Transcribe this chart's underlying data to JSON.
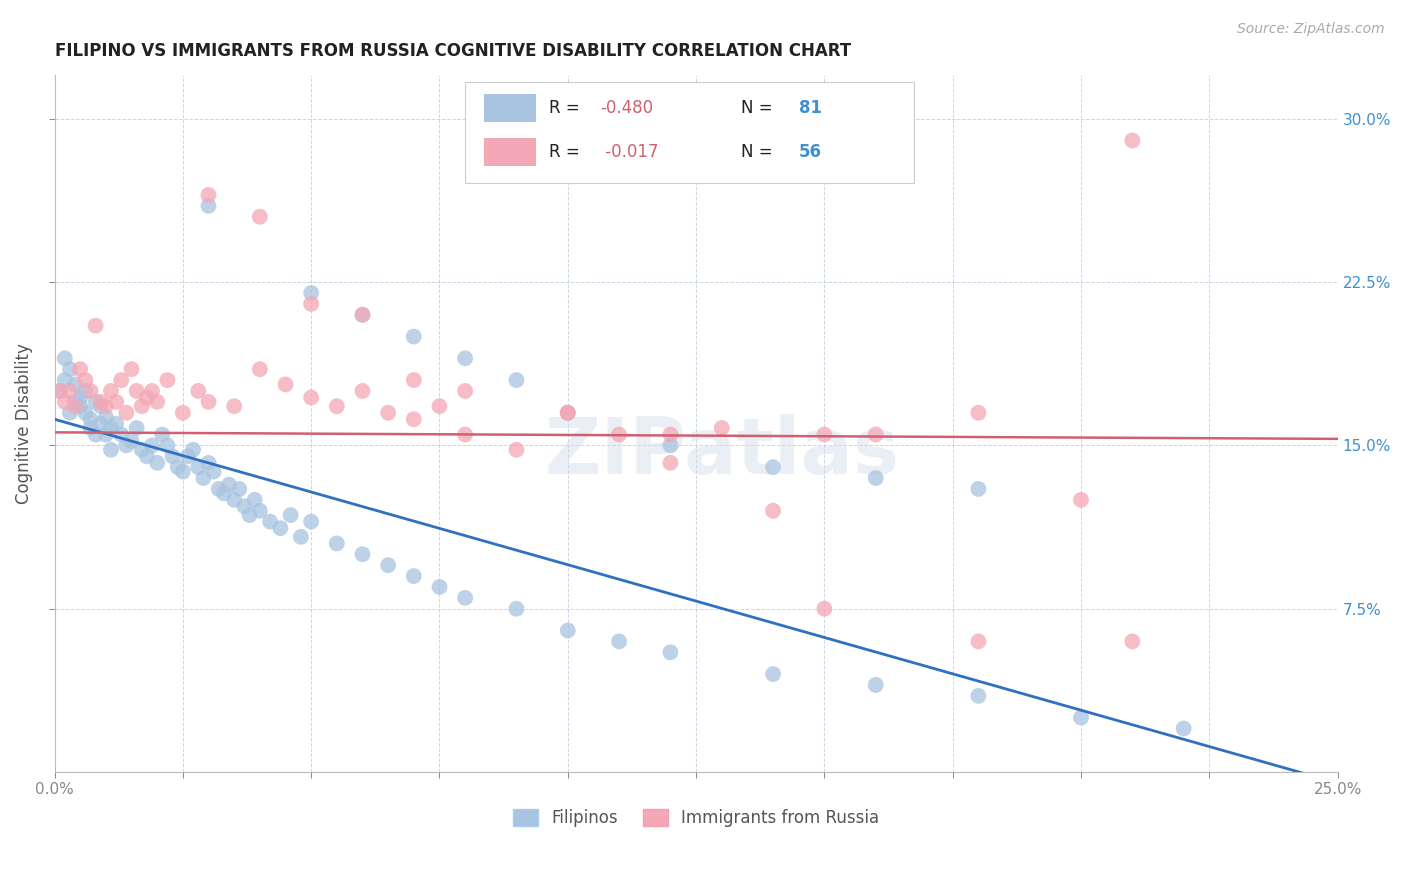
{
  "title": "FILIPINO VS IMMIGRANTS FROM RUSSIA COGNITIVE DISABILITY CORRELATION CHART",
  "source": "Source: ZipAtlas.com",
  "ylabel": "Cognitive Disability",
  "right_yticks": [
    "30.0%",
    "22.5%",
    "15.0%",
    "7.5%"
  ],
  "right_ytick_vals": [
    0.3,
    0.225,
    0.15,
    0.075
  ],
  "watermark": "ZIPatlas",
  "legend_r1": "-0.480",
  "legend_n1": "81",
  "legend_r2": "-0.017",
  "legend_n2": "56",
  "color_filipino": "#a8c4e0",
  "color_russia": "#f4a7b5",
  "color_line_filipino": "#3070c0",
  "color_line_russia": "#d06070",
  "color_right_axis": "#4090d0",
  "color_legend_text_r": "#222222",
  "color_legend_text_n": "#4090d0",
  "xlim": [
    0.0,
    0.25
  ],
  "ylim": [
    0.0,
    0.32
  ],
  "line_fil_x0": 0.0,
  "line_fil_y0": 0.162,
  "line_fil_x1": 0.25,
  "line_fil_y1": -0.005,
  "line_rus_x0": 0.0,
  "line_rus_y0": 0.156,
  "line_rus_x1": 0.25,
  "line_rus_y1": 0.153,
  "fil_x": [
    0.001,
    0.002,
    0.002,
    0.003,
    0.003,
    0.004,
    0.004,
    0.005,
    0.005,
    0.006,
    0.006,
    0.007,
    0.007,
    0.008,
    0.008,
    0.009,
    0.009,
    0.01,
    0.01,
    0.011,
    0.011,
    0.012,
    0.013,
    0.014,
    0.015,
    0.016,
    0.017,
    0.018,
    0.019,
    0.02,
    0.021,
    0.022,
    0.023,
    0.024,
    0.025,
    0.026,
    0.027,
    0.028,
    0.029,
    0.03,
    0.031,
    0.032,
    0.033,
    0.034,
    0.035,
    0.036,
    0.037,
    0.038,
    0.039,
    0.04,
    0.042,
    0.044,
    0.046,
    0.048,
    0.05,
    0.055,
    0.06,
    0.065,
    0.07,
    0.075,
    0.08,
    0.09,
    0.1,
    0.11,
    0.12,
    0.14,
    0.16,
    0.18,
    0.2,
    0.22,
    0.03,
    0.05,
    0.06,
    0.07,
    0.08,
    0.09,
    0.1,
    0.12,
    0.14,
    0.16,
    0.18
  ],
  "fil_y": [
    0.175,
    0.18,
    0.19,
    0.165,
    0.185,
    0.17,
    0.178,
    0.168,
    0.172,
    0.175,
    0.165,
    0.162,
    0.158,
    0.17,
    0.155,
    0.16,
    0.168,
    0.163,
    0.155,
    0.158,
    0.148,
    0.16,
    0.155,
    0.15,
    0.152,
    0.158,
    0.148,
    0.145,
    0.15,
    0.142,
    0.155,
    0.15,
    0.145,
    0.14,
    0.138,
    0.145,
    0.148,
    0.14,
    0.135,
    0.142,
    0.138,
    0.13,
    0.128,
    0.132,
    0.125,
    0.13,
    0.122,
    0.118,
    0.125,
    0.12,
    0.115,
    0.112,
    0.118,
    0.108,
    0.115,
    0.105,
    0.1,
    0.095,
    0.09,
    0.085,
    0.08,
    0.075,
    0.065,
    0.06,
    0.055,
    0.045,
    0.04,
    0.035,
    0.025,
    0.02,
    0.26,
    0.22,
    0.21,
    0.2,
    0.19,
    0.18,
    0.165,
    0.15,
    0.14,
    0.135,
    0.13
  ],
  "rus_x": [
    0.001,
    0.002,
    0.003,
    0.004,
    0.005,
    0.006,
    0.007,
    0.008,
    0.009,
    0.01,
    0.011,
    0.012,
    0.013,
    0.014,
    0.015,
    0.016,
    0.017,
    0.018,
    0.019,
    0.02,
    0.022,
    0.025,
    0.028,
    0.03,
    0.035,
    0.04,
    0.045,
    0.05,
    0.055,
    0.06,
    0.065,
    0.07,
    0.075,
    0.08,
    0.09,
    0.1,
    0.11,
    0.12,
    0.13,
    0.14,
    0.15,
    0.16,
    0.18,
    0.2,
    0.21,
    0.03,
    0.04,
    0.05,
    0.06,
    0.07,
    0.08,
    0.1,
    0.12,
    0.15,
    0.18,
    0.21
  ],
  "rus_y": [
    0.175,
    0.17,
    0.175,
    0.168,
    0.185,
    0.18,
    0.175,
    0.205,
    0.17,
    0.168,
    0.175,
    0.17,
    0.18,
    0.165,
    0.185,
    0.175,
    0.168,
    0.172,
    0.175,
    0.17,
    0.18,
    0.165,
    0.175,
    0.17,
    0.168,
    0.185,
    0.178,
    0.172,
    0.168,
    0.175,
    0.165,
    0.162,
    0.168,
    0.155,
    0.148,
    0.165,
    0.155,
    0.142,
    0.158,
    0.12,
    0.155,
    0.155,
    0.165,
    0.125,
    0.29,
    0.265,
    0.255,
    0.215,
    0.21,
    0.18,
    0.175,
    0.165,
    0.155,
    0.075,
    0.06,
    0.06
  ]
}
